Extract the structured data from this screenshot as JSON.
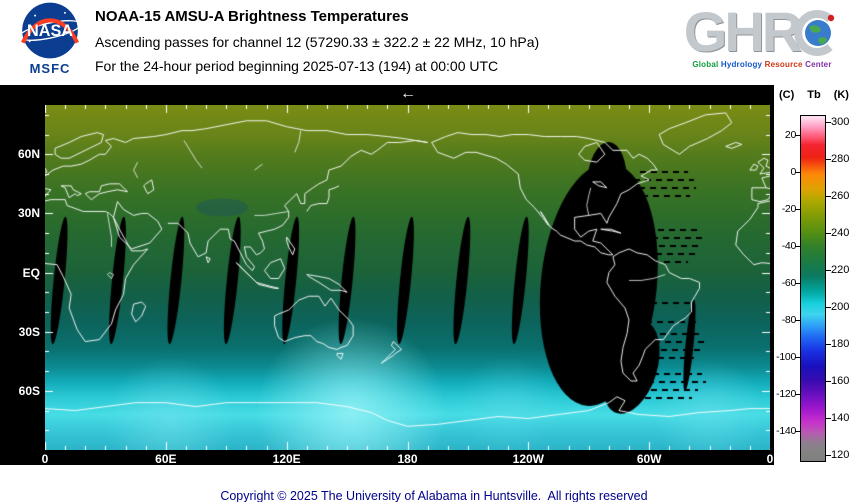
{
  "header": {
    "nasa": {
      "wordmark": "NASA",
      "center": "MSFC"
    },
    "title": "NOAA-15 AMSU-A Brightness Temperatures",
    "subtitle": "Ascending passes for channel 12 (57290.33 ± 322.2 ± 22 MHz, 10 hPa)",
    "period": "For the 24-hour period beginning 2025-07-13 (194) at 00:00 UTC",
    "ghrc": {
      "letters": "GHR",
      "caption_words": [
        "Global",
        "Hydrology",
        "Resource",
        "Center"
      ],
      "caption_colors": [
        "#0f9d3c",
        "#1457c8",
        "#d03515",
        "#8030a8"
      ]
    }
  },
  "map": {
    "direction_arrow": "←",
    "y_ticks": [
      "60N",
      "30N",
      "EQ",
      "30S",
      "60S"
    ],
    "x_ticks": [
      "0",
      "60E",
      "120E",
      "180",
      "120W",
      "60W",
      "0"
    ]
  },
  "colorbar": {
    "unit_left": "(C)",
    "title": "Tb",
    "unit_right": "(K)",
    "kelvin_ticks": [
      300,
      280,
      260,
      240,
      220,
      200,
      180,
      160,
      140,
      120
    ],
    "celsius_ticks": [
      20,
      0,
      -20,
      -40,
      -60,
      -80,
      -100,
      -120,
      -140
    ],
    "gradient_stops": [
      [
        0.4,
        "#ffdef0"
      ],
      [
        3.1,
        "#ff9fc4"
      ],
      [
        5.8,
        "#ff5f7e"
      ],
      [
        8.4,
        "#f52430"
      ],
      [
        12,
        "#ee2214"
      ],
      [
        16.9,
        "#fd8908"
      ],
      [
        21.2,
        "#dfa303"
      ],
      [
        24.9,
        "#aaa800"
      ],
      [
        29.2,
        "#7f9b07"
      ],
      [
        33.5,
        "#569111"
      ],
      [
        37.7,
        "#33802a"
      ],
      [
        42,
        "#1d7b41"
      ],
      [
        46.3,
        "#0c7a60"
      ],
      [
        50.6,
        "#00a49b"
      ],
      [
        54.3,
        "#18cfdc"
      ],
      [
        57.5,
        "#3ed4ee"
      ],
      [
        60.8,
        "#2f9ff7"
      ],
      [
        64.5,
        "#1e63f2"
      ],
      [
        68.3,
        "#1a2fe0"
      ],
      [
        72.6,
        "#1a10bd"
      ],
      [
        76.9,
        "#3a0cb0"
      ],
      [
        81.2,
        "#6f10c0"
      ],
      [
        85,
        "#a018cc"
      ],
      [
        88.7,
        "#c832cc"
      ],
      [
        91.9,
        "#b75bb0"
      ],
      [
        94.6,
        "#8f7d90"
      ],
      [
        97.3,
        "#848484"
      ],
      [
        100,
        "#7e7e7e"
      ]
    ]
  },
  "footer": {
    "copyright": "Copyright © 2025 The University of Alabama in Huntsville.  All rights reserved"
  },
  "chart_data": {
    "type": "heatmap",
    "title": "NOAA-15 AMSU-A Brightness Temperatures, ascending passes, channel 12 (57290.33 ± 322.2 ± 22 MHz, 10 hPa), 24-hour period beginning 2025-07-13 (194) at 00:00 UTC",
    "x_axis": {
      "ticks": [
        "0",
        "60E",
        "120E",
        "180",
        "120W",
        "60W",
        "0"
      ],
      "range_lon_e": [
        0,
        360
      ]
    },
    "y_axis": {
      "ticks": [
        "60N",
        "30N",
        "EQ",
        "30S",
        "60S"
      ],
      "range_lat": [
        85,
        -90
      ]
    },
    "value_scale": {
      "label": "Tb",
      "units": "K",
      "range_k": [
        120,
        300
      ],
      "ticks_k": [
        300,
        280,
        260,
        240,
        220,
        200,
        180,
        160,
        140,
        120
      ],
      "ticks_c": [
        20,
        0,
        -20,
        -40,
        -60,
        -80,
        -100,
        -120,
        -140
      ]
    },
    "latitude_profile": [
      [
        85,
        "#7a8c14"
      ],
      [
        70,
        "#69851a"
      ],
      [
        60,
        "#557c1c"
      ],
      [
        45,
        "#3e7423"
      ],
      [
        30,
        "#2e6e2b"
      ],
      [
        15,
        "#236833"
      ],
      [
        0,
        "#1c633a"
      ],
      [
        -12,
        "#136049"
      ],
      [
        -25,
        "#0d645c"
      ],
      [
        -38,
        "#0a706e"
      ],
      [
        -48,
        "#0c8c92"
      ],
      [
        -56,
        "#14aebc"
      ],
      [
        -63,
        "#2bc9d4"
      ],
      [
        -72,
        "#47dde6"
      ],
      [
        -80,
        "#38c8d8"
      ],
      [
        -90,
        "#2cb4c8"
      ]
    ],
    "swath_center_lons_e": [
      7,
      36,
      65,
      93,
      122,
      150,
      179,
      207,
      236
    ],
    "swath_center_lat": -4,
    "side_swath": {
      "center_lon_e": 320,
      "center_lat": -37
    },
    "gap_region": {
      "center_lon_e": 275,
      "center_lat": -6
    },
    "notes": "Black areas are data gaps between ascending swaths; a wide black gap region sits near 60W-90W over South America; bright cyan over Antarctica indicates cold brightness temperatures near 200 K."
  }
}
